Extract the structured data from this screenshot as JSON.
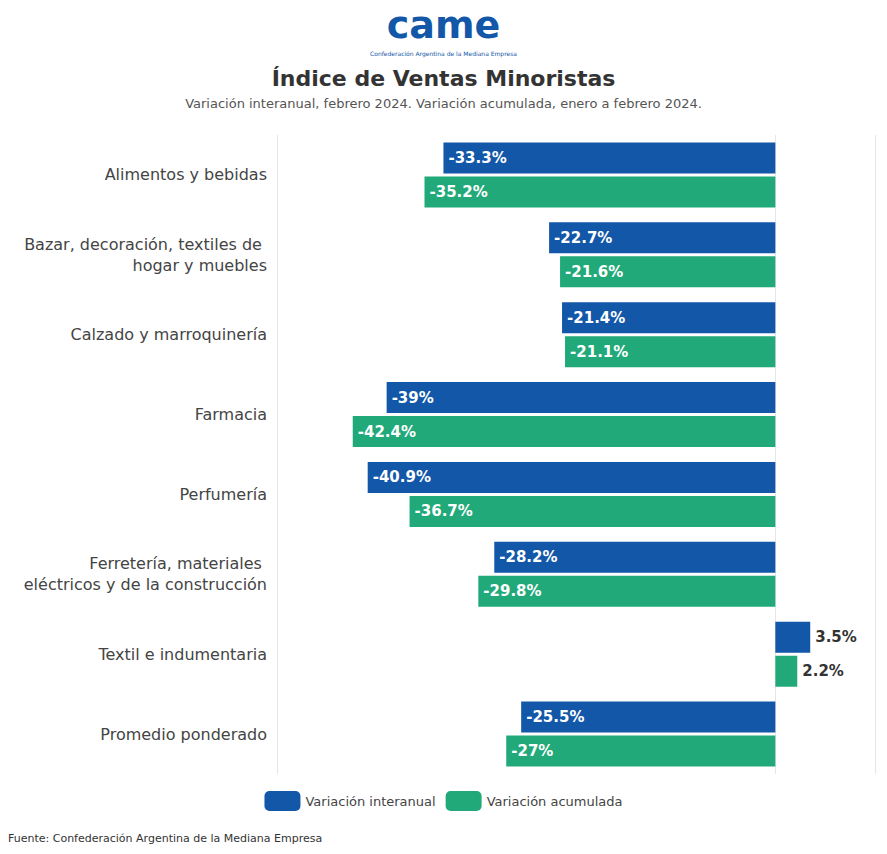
{
  "chart_data": {
    "type": "bar",
    "orientation": "horizontal",
    "logo": "came",
    "organization": "Confederación Argentina de la Mediana Empresa",
    "title": "Índice de Ventas Minoristas",
    "subtitle": "Variación interanual, febrero 2024. Variación acumulada, enero a febrero 2024.",
    "source": "Fuente: Confederación Argentina de la Mediana Empresa",
    "categories": [
      "Alimentos y bebidas",
      "Bazar, decoración, textiles de hogar y muebles",
      "Calzado y marroquinería",
      "Farmacia",
      "Perfumería",
      "Ferretería, materiales eléctricos y de la construcción",
      "Textil e indumentaria",
      "Promedio ponderado"
    ],
    "series": [
      {
        "name": "Variación interanual",
        "color": "#1257a8",
        "values": [
          -33.3,
          -22.7,
          -21.4,
          -39,
          -40.9,
          -28.2,
          3.5,
          -25.5
        ],
        "value_labels": [
          "-33.3%",
          "-22.7%",
          "-21.4%",
          "-39%",
          "-40.9%",
          "-28.2%",
          "3.5%",
          "-25.5%"
        ]
      },
      {
        "name": "Variación acumulada",
        "color": "#21a97a",
        "values": [
          -35.2,
          -21.6,
          -21.1,
          -42.4,
          -36.7,
          -29.8,
          2.2,
          -27
        ],
        "value_labels": [
          "-35.2%",
          "-21.6%",
          "-21.1%",
          "-42.4%",
          "-36.7%",
          "-29.8%",
          "2.2%",
          "-27%"
        ]
      }
    ],
    "xlim": [
      -50,
      10
    ],
    "xticks": [
      -50,
      0,
      10
    ],
    "grid": true,
    "tick_labels": "y",
    "data_labels": true,
    "legend": "bottom"
  }
}
